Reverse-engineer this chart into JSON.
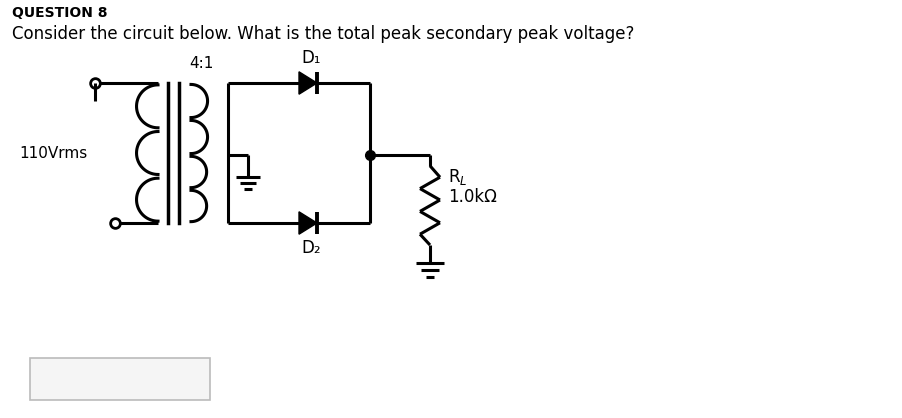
{
  "title": "QUESTION 8",
  "question": "Consider the circuit below. What is the total peak secondary peak voltage?",
  "label_voltage": "110Vrms",
  "label_ratio": "4:1",
  "label_d1": "D₁",
  "label_d2": "D₂",
  "label_rl": "Rₗ",
  "label_resistance": "1.0kΩ",
  "bg_color": "#ffffff",
  "line_color": "#000000"
}
